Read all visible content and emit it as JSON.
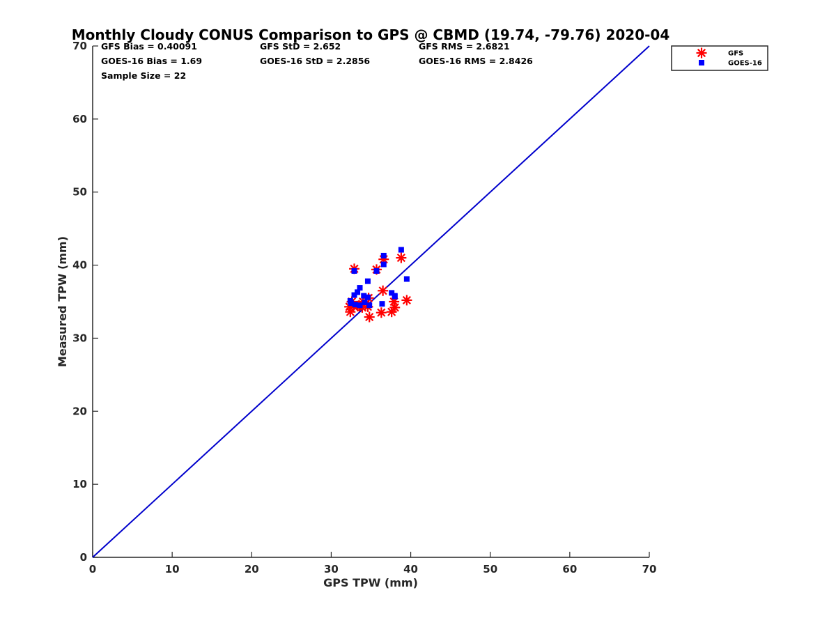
{
  "chart_data": {
    "type": "scatter",
    "title": "Monthly Cloudy CONUS Comparison to GPS @ CBMD (19.74, -79.76) 2020-04",
    "xlabel": "GPS TPW (mm)",
    "ylabel": "Measured TPW (mm)",
    "xlim": [
      0,
      70
    ],
    "ylim": [
      0,
      70
    ],
    "xticks": [
      "0",
      "10",
      "20",
      "30",
      "40",
      "50",
      "60",
      "70"
    ],
    "yticks": [
      "0",
      "10",
      "20",
      "30",
      "40",
      "50",
      "60",
      "70"
    ],
    "grid": false,
    "legend_position": "outside-top-right",
    "reference_line": {
      "x": [
        0,
        70
      ],
      "y": [
        0,
        70
      ],
      "color": "#0000cc"
    },
    "stats": [
      "GFS Bias = 0.40091",
      "GFS StD = 2.652",
      "GFS RMS = 2.6821",
      "GOES-16 Bias = 1.69",
      "GOES-16 StD = 2.2856",
      "GOES-16 RMS = 2.8426",
      "Sample Size = 22"
    ],
    "series": [
      {
        "name": "GFS",
        "marker": "asterisk",
        "color": "#ff0000",
        "points": [
          [
            32.9,
            39.5
          ],
          [
            35.7,
            39.4
          ],
          [
            36.6,
            40.8
          ],
          [
            38.8,
            41.0
          ],
          [
            36.5,
            36.5
          ],
          [
            32.3,
            34.3
          ],
          [
            32.4,
            33.6
          ],
          [
            32.8,
            34.4
          ],
          [
            33.5,
            34.5
          ],
          [
            34.0,
            35.0
          ],
          [
            34.4,
            34.8
          ],
          [
            34.7,
            35.5
          ],
          [
            34.8,
            32.9
          ],
          [
            36.3,
            33.5
          ],
          [
            37.6,
            33.6
          ],
          [
            38.0,
            34.2
          ],
          [
            37.9,
            35.0
          ],
          [
            39.5,
            35.2
          ],
          [
            33.9,
            34.2
          ],
          [
            32.6,
            35.0
          ],
          [
            34.6,
            34.3
          ],
          [
            33.3,
            34.4
          ]
        ]
      },
      {
        "name": "GOES-16",
        "marker": "square",
        "color": "#0000ff",
        "points": [
          [
            32.9,
            39.2
          ],
          [
            35.7,
            39.2
          ],
          [
            36.6,
            41.3
          ],
          [
            38.8,
            42.1
          ],
          [
            36.6,
            40.1
          ],
          [
            34.6,
            37.8
          ],
          [
            33.6,
            36.9
          ],
          [
            33.3,
            36.3
          ],
          [
            32.9,
            35.9
          ],
          [
            34.1,
            35.8
          ],
          [
            34.6,
            35.6
          ],
          [
            37.6,
            36.2
          ],
          [
            38.0,
            35.7
          ],
          [
            39.5,
            38.1
          ],
          [
            36.4,
            34.7
          ],
          [
            32.4,
            35.1
          ],
          [
            32.5,
            34.8
          ],
          [
            33.0,
            34.6
          ],
          [
            33.6,
            34.5
          ],
          [
            34.2,
            34.9
          ],
          [
            34.8,
            34.5
          ],
          [
            38.0,
            35.8
          ]
        ]
      }
    ]
  }
}
